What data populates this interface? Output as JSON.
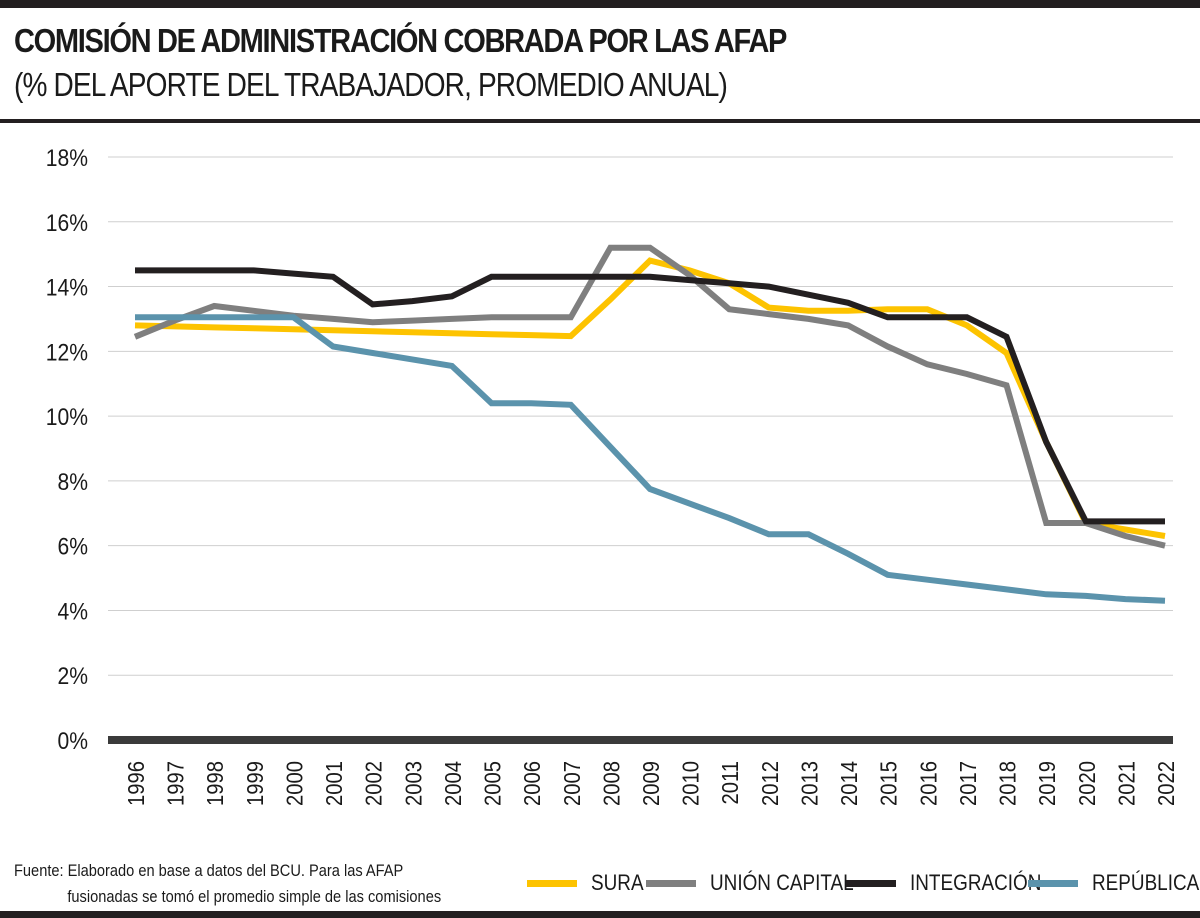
{
  "header": {
    "title": "COMISIÓN DE ADMINISTRACIÓN COBRADA POR LAS AFAP",
    "subtitle": "(% DEL APORTE DEL TRABAJADOR, PROMEDIO ANUAL)"
  },
  "footer": {
    "source_line1": "Fuente: Elaborado en base a datos del BCU. Para las AFAP",
    "source_line2": "fusionadas se tomó el promedio simple de las comisiones"
  },
  "chart_data": {
    "type": "line",
    "title": "COMISIÓN DE ADMINISTRACIÓN COBRADA POR LAS AFAP",
    "subtitle": "(% DEL APORTE DEL TRABAJADOR, PROMEDIO ANUAL)",
    "xlabel": "",
    "ylabel": "",
    "ylim": [
      0,
      18
    ],
    "yticks": [
      "0%",
      "2%",
      "4%",
      "6%",
      "8%",
      "10%",
      "12%",
      "14%",
      "16%",
      "18%"
    ],
    "grid": true,
    "legend_position": "bottom-right",
    "x": [
      "1996",
      "1997",
      "1998",
      "1999",
      "2000",
      "2001",
      "2002",
      "2003",
      "2004",
      "2005",
      "2006",
      "2007",
      "2008",
      "2009",
      "2010",
      "2011",
      "2012",
      "2013",
      "2014",
      "2015",
      "2016",
      "2017",
      "2018",
      "2019",
      "2020",
      "2021",
      "2022"
    ],
    "series": [
      {
        "name": "SURA",
        "color": "#fdc300",
        "values": [
          12.8,
          12.77,
          12.74,
          12.71,
          12.68,
          12.65,
          12.62,
          12.59,
          12.56,
          12.53,
          12.5,
          12.47,
          13.6,
          14.8,
          14.5,
          14.1,
          13.35,
          13.25,
          13.25,
          13.3,
          13.3,
          12.8,
          11.95,
          9.2,
          6.7,
          6.5,
          6.3
        ]
      },
      {
        "name": "UNIÓN CAPITAL",
        "color": "#7f7f7f",
        "values": [
          12.45,
          12.95,
          13.4,
          13.25,
          13.1,
          13.0,
          12.9,
          12.95,
          13.0,
          13.05,
          13.05,
          13.05,
          15.2,
          15.2,
          14.35,
          13.3,
          13.15,
          13.0,
          12.8,
          12.15,
          11.6,
          11.3,
          10.95,
          6.7,
          6.7,
          6.3,
          6.0
        ]
      },
      {
        "name": "INTEGRACIÓN",
        "color": "#231f20",
        "values": [
          14.5,
          14.5,
          14.5,
          14.5,
          14.4,
          14.3,
          13.45,
          13.55,
          13.7,
          14.3,
          14.3,
          14.3,
          14.3,
          14.3,
          14.2,
          14.1,
          14.0,
          13.75,
          13.5,
          13.05,
          13.05,
          13.05,
          12.45,
          9.2,
          6.75,
          6.75,
          6.75
        ]
      },
      {
        "name": "REPÚBLICA",
        "color": "#5b93ac",
        "values": [
          13.05,
          13.05,
          13.05,
          13.05,
          13.05,
          12.15,
          11.95,
          11.75,
          11.55,
          10.4,
          10.4,
          10.35,
          9.05,
          7.75,
          7.3,
          6.85,
          6.35,
          6.35,
          5.75,
          5.1,
          4.95,
          4.8,
          4.65,
          4.5,
          4.45,
          4.35,
          4.3
        ]
      }
    ]
  }
}
